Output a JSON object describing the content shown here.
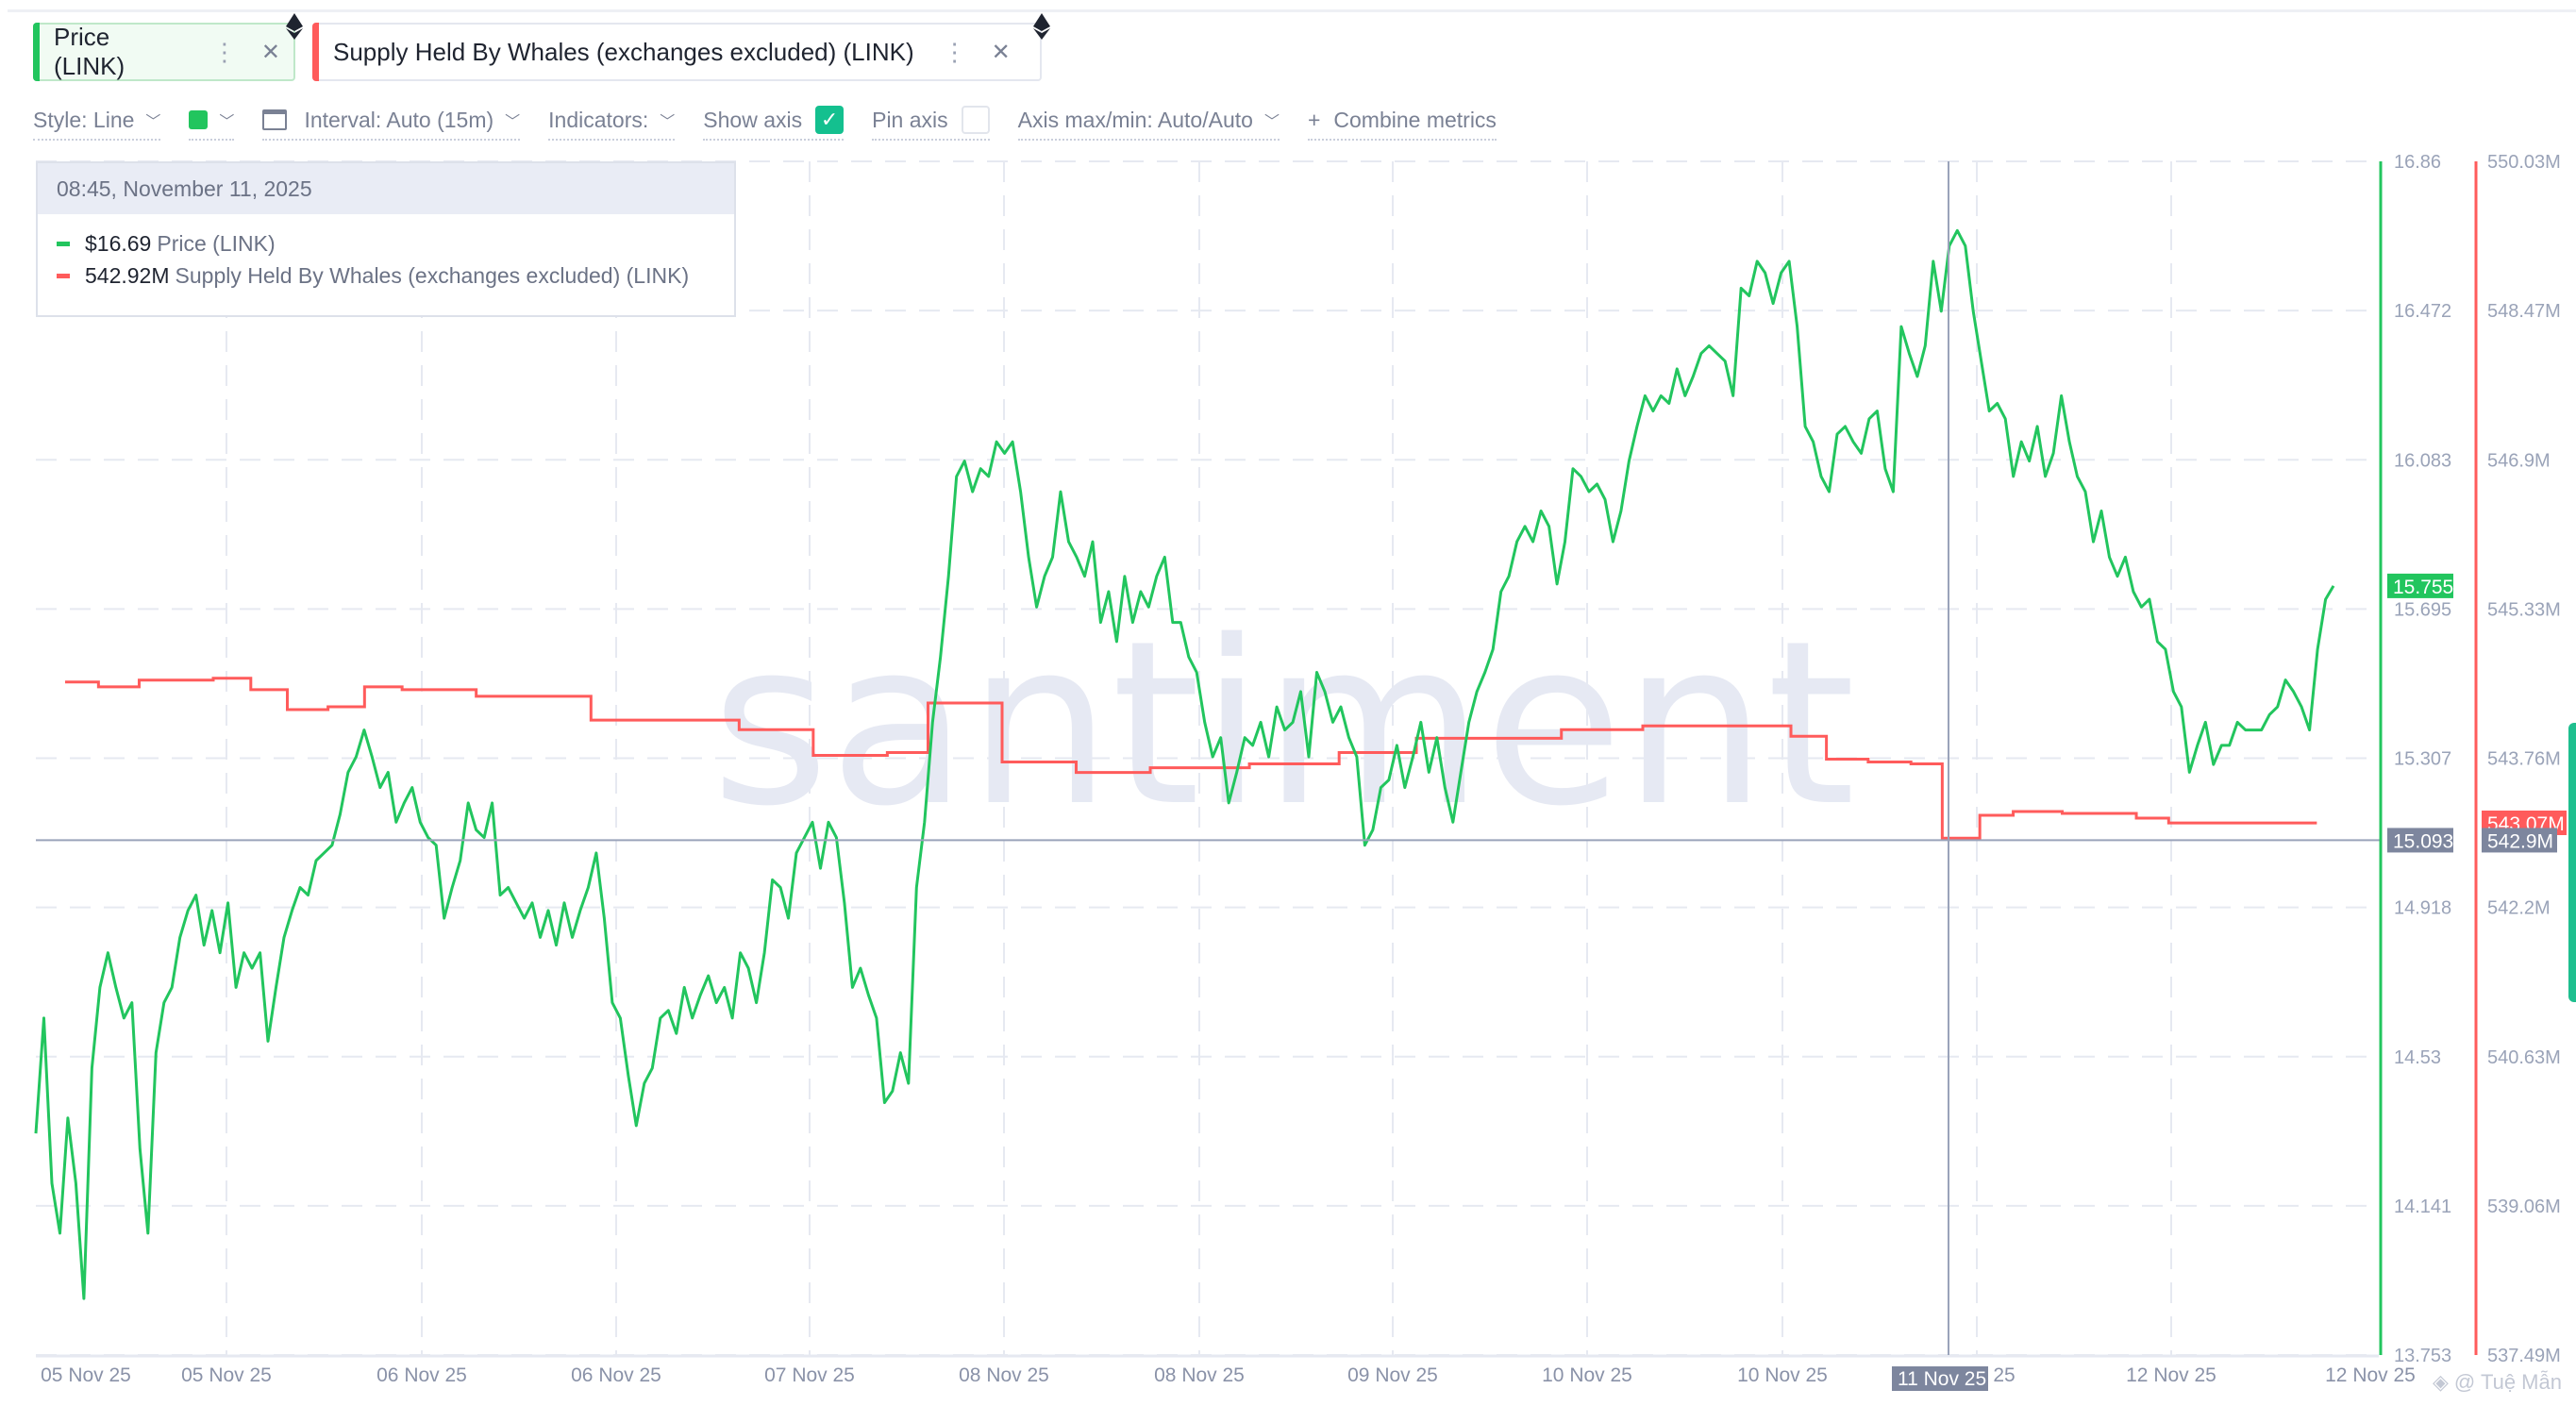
{
  "tabs": [
    {
      "label": "Price (LINK)",
      "color": "#22c55e",
      "menu_icon": "kebab-icon",
      "close_icon": "close-icon",
      "asset_icon": "ethereum-icon"
    },
    {
      "label": "Supply Held By Whales (exchanges excluded) (LINK)",
      "color": "#ff5b5b",
      "menu_icon": "kebab-icon",
      "close_icon": "close-icon",
      "asset_icon": "ethereum-icon"
    }
  ],
  "toolbar": {
    "style": "Style: Line",
    "color_swatch": "#22c55e",
    "interval": "Interval: Auto (15m)",
    "indicators": "Indicators:",
    "show_axis": "Show axis",
    "show_axis_checked": true,
    "pin_axis": "Pin axis",
    "pin_axis_checked": false,
    "axis_maxmin": "Axis max/min: Auto/Auto",
    "combine_plus": "+",
    "combine": "Combine metrics"
  },
  "tooltip": {
    "date": "08:45, November 11, 2025",
    "rows": [
      {
        "value": "$16.69",
        "name": "Price (LINK)",
        "color": "#22c55e"
      },
      {
        "value": "542.92M",
        "name": "Supply Held By Whales (exchanges excluded) (LINK)",
        "color": "#ff5b5b"
      }
    ]
  },
  "watermark": "santiment",
  "credit": "@ Tuệ Mẫn",
  "chart_data": {
    "type": "line",
    "grid": true,
    "x_tick_labels": [
      "05 Nov 25",
      "05 Nov 25",
      "06 Nov 25",
      "06 Nov 25",
      "07 Nov 25",
      "08 Nov 25",
      "08 Nov 25",
      "09 Nov 25",
      "10 Nov 25",
      "10 Nov 25",
      "25",
      "12 Nov 25",
      "12 Nov 25"
    ],
    "x_range": [
      "2025-11-05T00:00",
      "2025-11-12T19:00"
    ],
    "crosshair": {
      "time": "2025-11-11T08:45",
      "x_label": "11 Nov 25",
      "price_label": "15.093",
      "supply_label": "542.9M"
    },
    "axes": [
      {
        "series": "Price (LINK)",
        "color": "#22c55e",
        "range": [
          13.753,
          16.86
        ],
        "ticks": [
          "16.86",
          "16.472",
          "16.083",
          "15.695",
          "15.307",
          "14.918",
          "14.53",
          "14.141",
          "13.753"
        ],
        "last_value_label": "15.755"
      },
      {
        "series": "Supply Held By Whales (exchanges excluded) (LINK)",
        "color": "#ff5b5b",
        "range": [
          537.49,
          550.03
        ],
        "ticks": [
          "550.03M",
          "548.47M",
          "546.9M",
          "545.33M",
          "543.76M",
          "542.2M",
          "540.63M",
          "539.06M",
          "537.49M"
        ],
        "last_value_label": "543.07M"
      }
    ],
    "series": [
      {
        "name": "Price (LINK)",
        "color": "#22c55e",
        "start": "2025-11-05T00:00",
        "end": "2025-11-12T15:30",
        "values": [
          14.33,
          14.63,
          14.2,
          14.07,
          14.37,
          14.2,
          13.9,
          14.5,
          14.71,
          14.8,
          14.71,
          14.63,
          14.67,
          14.29,
          14.07,
          14.54,
          14.67,
          14.71,
          14.84,
          14.91,
          14.95,
          14.82,
          14.91,
          14.8,
          14.93,
          14.71,
          14.8,
          14.76,
          14.8,
          14.57,
          14.71,
          14.84,
          14.91,
          14.97,
          14.95,
          15.04,
          15.06,
          15.08,
          15.16,
          15.27,
          15.31,
          15.38,
          15.31,
          15.23,
          15.27,
          15.14,
          15.19,
          15.23,
          15.14,
          15.1,
          15.08,
          14.89,
          14.97,
          15.04,
          15.19,
          15.12,
          15.1,
          15.19,
          14.95,
          14.97,
          14.93,
          14.89,
          14.93,
          14.84,
          14.91,
          14.82,
          14.93,
          14.84,
          14.91,
          14.97,
          15.06,
          14.89,
          14.67,
          14.63,
          14.48,
          14.35,
          14.46,
          14.5,
          14.63,
          14.65,
          14.59,
          14.71,
          14.63,
          14.69,
          14.74,
          14.67,
          14.71,
          14.63,
          14.8,
          14.76,
          14.67,
          14.8,
          14.99,
          14.97,
          14.89,
          15.06,
          15.1,
          15.14,
          15.02,
          15.14,
          15.1,
          14.93,
          14.71,
          14.76,
          14.69,
          14.63,
          14.41,
          14.44,
          14.54,
          14.46,
          14.97,
          15.14,
          15.4,
          15.57,
          15.78,
          16.04,
          16.08,
          16.0,
          16.06,
          16.04,
          16.13,
          16.1,
          16.13,
          16.0,
          15.83,
          15.7,
          15.78,
          15.83,
          16.0,
          15.87,
          15.83,
          15.78,
          15.87,
          15.66,
          15.74,
          15.61,
          15.78,
          15.66,
          15.74,
          15.7,
          15.78,
          15.83,
          15.66,
          15.66,
          15.57,
          15.53,
          15.4,
          15.31,
          15.36,
          15.19,
          15.27,
          15.36,
          15.34,
          15.4,
          15.31,
          15.44,
          15.38,
          15.4,
          15.48,
          15.31,
          15.53,
          15.48,
          15.4,
          15.44,
          15.36,
          15.31,
          15.08,
          15.12,
          15.23,
          15.25,
          15.34,
          15.23,
          15.31,
          15.4,
          15.27,
          15.36,
          15.23,
          15.14,
          15.27,
          15.4,
          15.48,
          15.53,
          15.59,
          15.74,
          15.78,
          15.87,
          15.91,
          15.87,
          15.95,
          15.91,
          15.76,
          15.87,
          16.06,
          16.04,
          16.0,
          16.02,
          15.98,
          15.87,
          15.95,
          16.08,
          16.17,
          16.25,
          16.21,
          16.25,
          16.23,
          16.32,
          16.25,
          16.3,
          16.36,
          16.38,
          16.36,
          16.34,
          16.25,
          16.53,
          16.51,
          16.6,
          16.57,
          16.49,
          16.57,
          16.6,
          16.43,
          16.17,
          16.13,
          16.04,
          16.0,
          16.15,
          16.17,
          16.13,
          16.1,
          16.19,
          16.21,
          16.06,
          16.0,
          16.43,
          16.36,
          16.3,
          16.38,
          16.6,
          16.47,
          16.64,
          16.68,
          16.64,
          16.47,
          16.34,
          16.21,
          16.23,
          16.19,
          16.04,
          16.13,
          16.08,
          16.17,
          16.04,
          16.1,
          16.25,
          16.13,
          16.04,
          16.0,
          15.87,
          15.95,
          15.83,
          15.78,
          15.83,
          15.74,
          15.7,
          15.72,
          15.61,
          15.59,
          15.48,
          15.44,
          15.27,
          15.34,
          15.4,
          15.29,
          15.34,
          15.34,
          15.4,
          15.38,
          15.38,
          15.38,
          15.42,
          15.44,
          15.51,
          15.48,
          15.44,
          15.38,
          15.59,
          15.72,
          15.755
        ]
      },
      {
        "name": "Supply Held By Whales (exchanges excluded) (LINK)",
        "color": "#ff5b5b",
        "step": true,
        "end": "2025-11-12T14:10",
        "points": [
          [
            "2025-11-05T02:20",
            544.56
          ],
          [
            "2025-11-05T05:00",
            544.51
          ],
          [
            "2025-11-05T08:15",
            544.58
          ],
          [
            "2025-11-05T14:10",
            544.6
          ],
          [
            "2025-11-05T17:10",
            544.48
          ],
          [
            "2025-11-05T20:05",
            544.27
          ],
          [
            "2025-11-05T23:20",
            544.3
          ],
          [
            "2025-11-06T02:15",
            544.51
          ],
          [
            "2025-11-06T05:15",
            544.48
          ],
          [
            "2025-11-06T11:10",
            544.41
          ],
          [
            "2025-11-06T20:20",
            544.16
          ],
          [
            "2025-11-07T08:10",
            544.06
          ],
          [
            "2025-11-07T14:05",
            543.79
          ],
          [
            "2025-11-07T20:00",
            543.82
          ],
          [
            "2025-11-07T23:15",
            544.34
          ],
          [
            "2025-11-08T05:10",
            543.72
          ],
          [
            "2025-11-08T11:05",
            543.61
          ],
          [
            "2025-11-08T17:00",
            543.66
          ],
          [
            "2025-11-09T00:55",
            543.7
          ],
          [
            "2025-11-09T08:05",
            543.82
          ],
          [
            "2025-11-09T14:15",
            543.97
          ],
          [
            "2025-11-10T01:50",
            544.06
          ],
          [
            "2025-11-10T08:20",
            544.1
          ],
          [
            "2025-11-10T20:10",
            543.99
          ],
          [
            "2025-11-10T23:00",
            543.75
          ],
          [
            "2025-11-11T02:20",
            543.72
          ],
          [
            "2025-11-11T05:45",
            543.7
          ],
          [
            "2025-11-11T08:15",
            542.92
          ],
          [
            "2025-11-11T11:15",
            543.16
          ],
          [
            "2025-11-11T13:55",
            543.2
          ],
          [
            "2025-11-11T17:50",
            543.18
          ],
          [
            "2025-11-11T23:45",
            543.13
          ],
          [
            "2025-11-12T02:20",
            543.08
          ]
        ]
      }
    ]
  }
}
